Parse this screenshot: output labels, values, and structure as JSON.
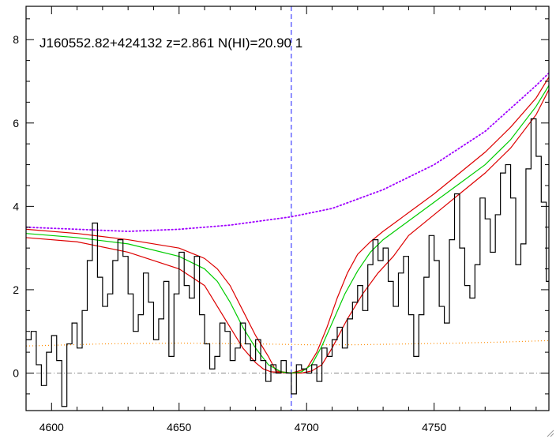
{
  "chart_data": {
    "type": "line",
    "title": "J160552.82+424132 z=2.861 N(HI)=20.90 1",
    "xlabel": "",
    "ylabel": "",
    "xlim": [
      4590,
      4795
    ],
    "ylim": [
      -0.9,
      8.8
    ],
    "x_ticks": [
      4600,
      4650,
      4700,
      4750
    ],
    "y_ticks": [
      0,
      2,
      4,
      6,
      8
    ],
    "grid": false,
    "legend": "none",
    "center_line_x": 4694,
    "colors": {
      "spectrum": "#000000",
      "fit": "#00cc00",
      "fit_bounds": "#dd0000",
      "continuum": "#a000ff",
      "error": "#ff8c00",
      "zero_line": "#888888",
      "center_line": "#1a1aff"
    },
    "series": [
      {
        "style": "histogram",
        "x": [
          4590,
          4592,
          4594,
          4596,
          4598,
          4600,
          4602,
          4604,
          4606,
          4608,
          4610,
          4612,
          4614,
          4616,
          4618,
          4620,
          4622,
          4624,
          4626,
          4628,
          4630,
          4632,
          4634,
          4636,
          4638,
          4640,
          4642,
          4644,
          4646,
          4648,
          4650,
          4652,
          4654,
          4656,
          4658,
          4660,
          4662,
          4664,
          4666,
          4668,
          4670,
          4672,
          4674,
          4676,
          4678,
          4680,
          4682,
          4684,
          4686,
          4688,
          4690,
          4692,
          4694,
          4696,
          4698,
          4700,
          4702,
          4704,
          4706,
          4708,
          4710,
          4712,
          4714,
          4716,
          4718,
          4720,
          4722,
          4724,
          4726,
          4728,
          4730,
          4732,
          4734,
          4736,
          4738,
          4740,
          4742,
          4744,
          4746,
          4748,
          4750,
          4752,
          4754,
          4756,
          4758,
          4760,
          4762,
          4764,
          4766,
          4768,
          4770,
          4772,
          4774,
          4776,
          4778,
          4780,
          4782,
          4784,
          4786,
          4788,
          4790,
          4792,
          4794
        ],
        "values": [
          0.8,
          1.0,
          0.2,
          -0.3,
          0.5,
          0.9,
          0.3,
          -0.8,
          0.7,
          1.2,
          0.6,
          1.5,
          2.7,
          3.6,
          2.3,
          1.6,
          1.9,
          2.7,
          3.2,
          2.8,
          1.9,
          1.0,
          1.4,
          2.4,
          1.7,
          0.8,
          1.3,
          2.2,
          0.4,
          1.9,
          2.9,
          2.1,
          1.8,
          2.8,
          1.4,
          0.7,
          0.1,
          0.4,
          1.2,
          1.0,
          0.3,
          0.6,
          1.2,
          0.7,
          0.3,
          0.8,
          0.3,
          -0.2,
          0.2,
          0.0,
          0.3,
          0.0,
          -0.5,
          0.2,
          0.1,
          0.0,
          0.2,
          -0.2,
          0.6,
          0.4,
          0.8,
          1.1,
          0.6,
          1.3,
          1.7,
          2.1,
          1.5,
          2.6,
          3.2,
          2.7,
          3.0,
          2.2,
          1.6,
          2.4,
          2.8,
          1.4,
          0.4,
          1.4,
          2.3,
          3.3,
          2.7,
          1.6,
          1.2,
          3.2,
          4.3,
          3.0,
          2.1,
          1.8,
          2.6,
          4.2,
          3.7,
          2.9,
          3.8,
          4.8,
          5.0,
          4.2,
          2.6,
          3.1,
          4.9,
          6.1,
          5.2,
          4.1,
          2.2
        ]
      },
      {
        "style": "line",
        "x": [
          4590,
          4610,
          4630,
          4650,
          4660,
          4665,
          4670,
          4675,
          4680,
          4685,
          4690,
          4694,
          4698,
          4702,
          4706,
          4710,
          4715,
          4720,
          4725,
          4730,
          4740,
          4750,
          4760,
          4770,
          4780,
          4790,
          4795
        ],
        "values": [
          3.35,
          3.25,
          3.1,
          2.8,
          2.5,
          2.2,
          1.7,
          1.1,
          0.6,
          0.2,
          0.03,
          0.0,
          0.03,
          0.2,
          0.65,
          1.2,
          1.9,
          2.45,
          2.9,
          3.2,
          3.65,
          4.1,
          4.55,
          5.0,
          5.6,
          6.4,
          6.9
        ]
      },
      {
        "style": "line",
        "x": [
          4590,
          4610,
          4630,
          4650,
          4660,
          4665,
          4670,
          4675,
          4680,
          4685,
          4688,
          4694,
          4700,
          4704,
          4708,
          4712,
          4716,
          4720,
          4725,
          4730,
          4740,
          4750,
          4760,
          4770,
          4780,
          4790,
          4795
        ],
        "values": [
          3.45,
          3.35,
          3.2,
          3.0,
          2.75,
          2.5,
          2.1,
          1.5,
          0.9,
          0.4,
          0.05,
          0.0,
          0.1,
          0.5,
          1.1,
          1.8,
          2.4,
          2.85,
          3.15,
          3.4,
          3.85,
          4.3,
          4.8,
          5.3,
          5.9,
          6.6,
          7.1
        ]
      },
      {
        "style": "line",
        "x": [
          4590,
          4610,
          4630,
          4650,
          4660,
          4665,
          4670,
          4675,
          4680,
          4683,
          4686,
          4694,
          4698,
          4702,
          4706,
          4710,
          4716,
          4722,
          4728,
          4734,
          4740,
          4750,
          4760,
          4770,
          4780,
          4790,
          4795
        ],
        "values": [
          3.25,
          3.15,
          2.9,
          2.5,
          2.1,
          1.6,
          1.1,
          0.6,
          0.25,
          0.1,
          0.03,
          0.0,
          0.0,
          0.05,
          0.2,
          0.6,
          1.3,
          1.9,
          2.4,
          2.8,
          3.3,
          3.8,
          4.3,
          4.8,
          5.4,
          6.2,
          6.8
        ]
      },
      {
        "style": "dotted",
        "x": [
          4590,
          4610,
          4630,
          4650,
          4670,
          4694,
          4710,
          4730,
          4750,
          4770,
          4790,
          4795
        ],
        "values": [
          3.5,
          3.45,
          3.4,
          3.45,
          3.55,
          3.75,
          3.95,
          4.4,
          5.0,
          5.8,
          6.9,
          7.2
        ]
      },
      {
        "style": "dotted",
        "x": [
          4590,
          4620,
          4650,
          4680,
          4700,
          4720,
          4740,
          4760,
          4780,
          4795
        ],
        "values": [
          0.65,
          0.7,
          0.72,
          0.7,
          0.68,
          0.68,
          0.7,
          0.72,
          0.75,
          0.78
        ]
      }
    ]
  }
}
